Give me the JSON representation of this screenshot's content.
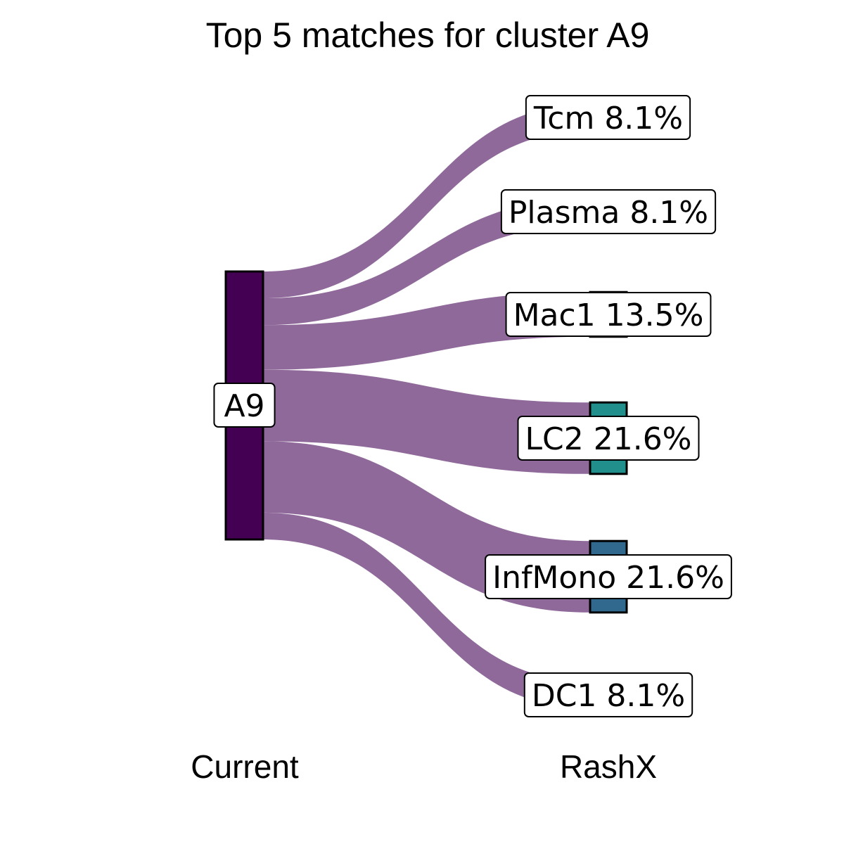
{
  "chart_data": {
    "type": "sankey",
    "title": "Top 5 matches for cluster A9",
    "axes": [
      "Current",
      "RashX"
    ],
    "source": {
      "name": "A9",
      "color": "#440154"
    },
    "flow_color": "#8F699A",
    "targets": [
      {
        "name": "Tcm",
        "label": "Tcm 8.1%",
        "value": 8.1,
        "color": "#FDE725"
      },
      {
        "name": "Plasma",
        "label": "Plasma 8.1%",
        "value": 8.1,
        "color": "#B4DE2C"
      },
      {
        "name": "Mac1",
        "label": "Mac1 13.5%",
        "value": 13.5,
        "color": "#6DCD59"
      },
      {
        "name": "LC2",
        "label": "LC2 21.6%",
        "value": 21.6,
        "color": "#21908C"
      },
      {
        "name": "InfMono",
        "label": "InfMono 21.6%",
        "value": 21.6,
        "color": "#31688E"
      },
      {
        "name": "DC1",
        "label": "DC1 8.1%",
        "value": 8.1,
        "color": "#440154"
      }
    ]
  }
}
